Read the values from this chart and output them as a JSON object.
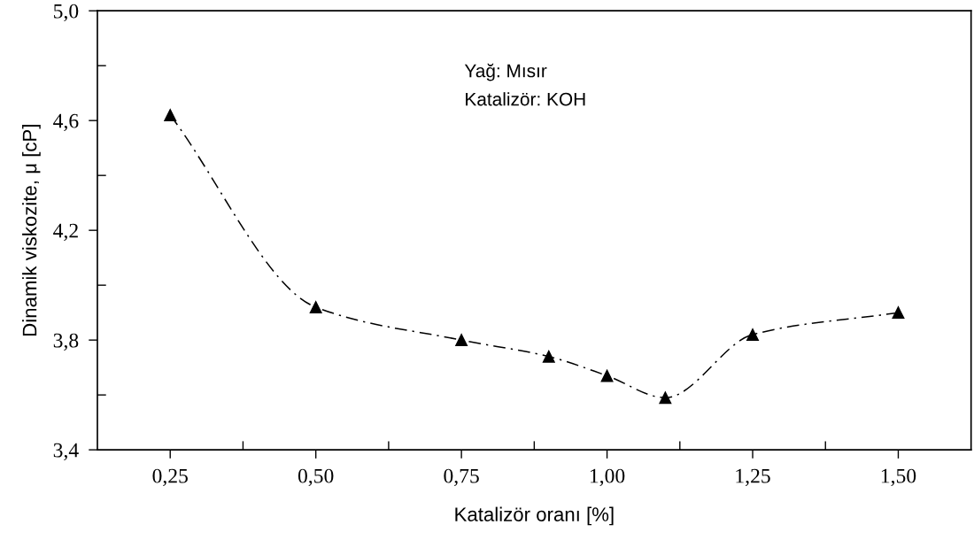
{
  "chart_data": {
    "type": "line",
    "xlabel": "Katalizör oranı [%]",
    "ylabel": "Dinamik viskozite, μ [cP]",
    "annotations": [
      "Yağ: Mısır",
      "Katalizör: KOH"
    ],
    "x": [
      0.25,
      0.5,
      0.75,
      0.9,
      1.0,
      1.1,
      1.25,
      1.5
    ],
    "series": [
      {
        "color": "#000000",
        "values": [
          4.62,
          3.92,
          3.8,
          3.74,
          3.67,
          3.59,
          3.82,
          3.9
        ]
      }
    ],
    "xlim": [
      0.125,
      1.625
    ],
    "xticks": [
      {
        "value": 0.25,
        "label": "0,25"
      },
      {
        "value": 0.375,
        "label": null
      },
      {
        "value": 0.5,
        "label": "0,50"
      },
      {
        "value": 0.625,
        "label": null
      },
      {
        "value": 0.75,
        "label": "0,75"
      },
      {
        "value": 0.875,
        "label": null
      },
      {
        "value": 1.0,
        "label": "1,00"
      },
      {
        "value": 1.125,
        "label": null
      },
      {
        "value": 1.25,
        "label": "1,25"
      },
      {
        "value": 1.375,
        "label": null
      },
      {
        "value": 1.5,
        "label": "1,50"
      }
    ],
    "ylim": [
      3.4,
      5.0
    ],
    "yticks": [
      {
        "value": 3.4,
        "label": "3,4"
      },
      {
        "value": 3.6,
        "label": null
      },
      {
        "value": 3.8,
        "label": "3,8"
      },
      {
        "value": 4.0,
        "label": null
      },
      {
        "value": 4.2,
        "label": "4,2"
      },
      {
        "value": 4.4,
        "label": null
      },
      {
        "value": 4.6,
        "label": "4,6"
      },
      {
        "value": 4.8,
        "label": null
      },
      {
        "value": 5.0,
        "label": "5,0"
      }
    ],
    "grid": false,
    "legend": false,
    "marker": "triangle",
    "line_style": "dashed"
  }
}
